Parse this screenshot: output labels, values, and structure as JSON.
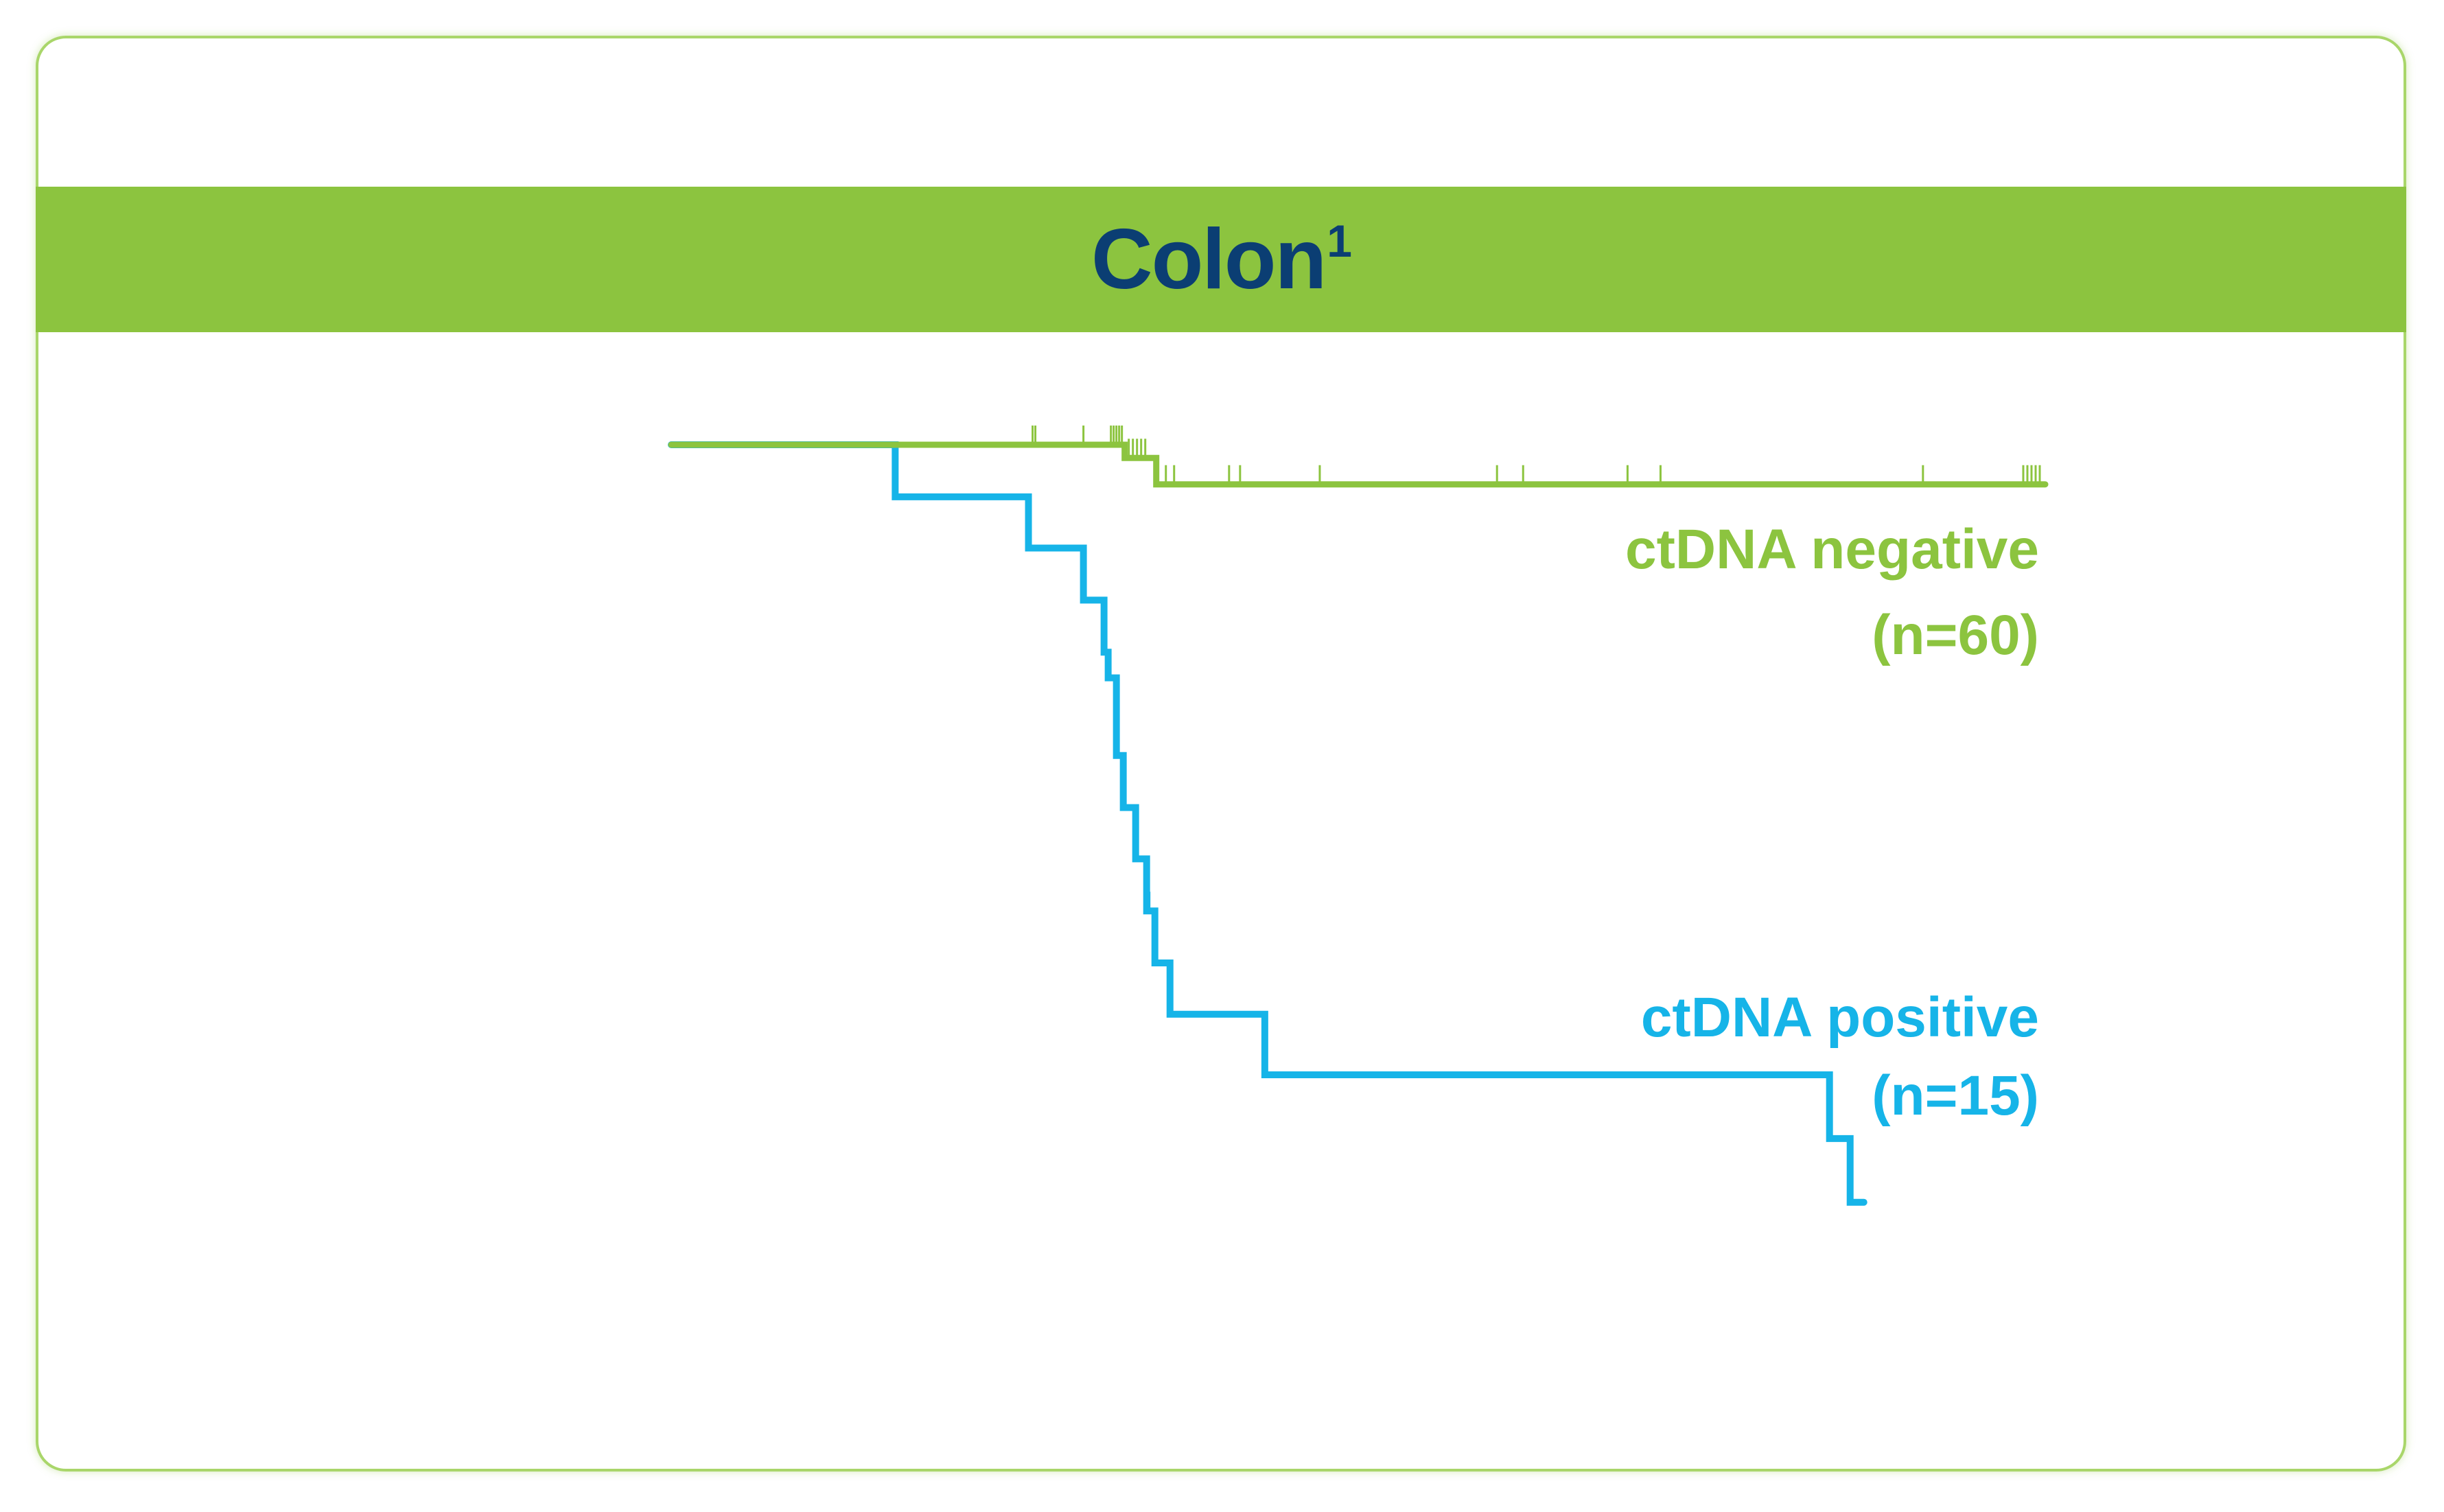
{
  "chart": {
    "title": "Colon",
    "title_superscript": "1"
  },
  "chart_data": {
    "type": "line",
    "step": "post",
    "title": "Colon",
    "xlabel": "",
    "ylabel": "",
    "axes_visible": false,
    "grid": false,
    "xlim": [
      0,
      100
    ],
    "ylim": [
      0,
      100
    ],
    "series": [
      {
        "name": "ctDNA negative",
        "n_label": "(n=60)",
        "color": "#8cc43f",
        "x": [
          0,
          33.0,
          35.3,
          100
        ],
        "y": [
          100,
          98.3,
          94.9,
          94.9
        ],
        "censor_x": [
          26.3,
          26.5,
          30.0,
          32.0,
          32.2,
          32.4,
          32.6,
          32.8,
          33.3,
          33.6,
          33.9,
          34.2,
          34.5,
          36.0,
          36.6,
          40.6,
          41.4,
          47.2,
          60.1,
          62.0,
          69.6,
          72.0,
          91.1,
          98.4,
          98.7,
          99.0,
          99.3,
          99.6
        ],
        "censor_y": [
          100,
          100,
          100,
          100,
          100,
          100,
          100,
          100,
          98.3,
          98.3,
          98.3,
          98.3,
          98.3,
          94.9,
          94.9,
          94.9,
          94.9,
          94.9,
          94.9,
          94.9,
          94.9,
          94.9,
          94.9,
          94.9,
          94.9,
          94.9,
          94.9,
          94.9
        ]
      },
      {
        "name": "ctDNA positive",
        "n_label": "(n=15)",
        "color": "#16b4e8",
        "x": [
          0,
          16.3,
          26.0,
          30.0,
          31.5,
          31.8,
          32.4,
          32.9,
          33.8,
          34.6,
          35.2,
          36.3,
          43.2,
          84.3,
          85.8,
          86.8
        ],
        "y": [
          100,
          93.3,
          86.7,
          80.0,
          73.3,
          70.0,
          60.0,
          53.3,
          46.7,
          40.0,
          33.3,
          26.7,
          18.9,
          10.7,
          2.5,
          2.5
        ],
        "censor_x": [
          31.4,
          34.8
        ],
        "censor_y": [
          73.3,
          40.0
        ]
      }
    ]
  }
}
